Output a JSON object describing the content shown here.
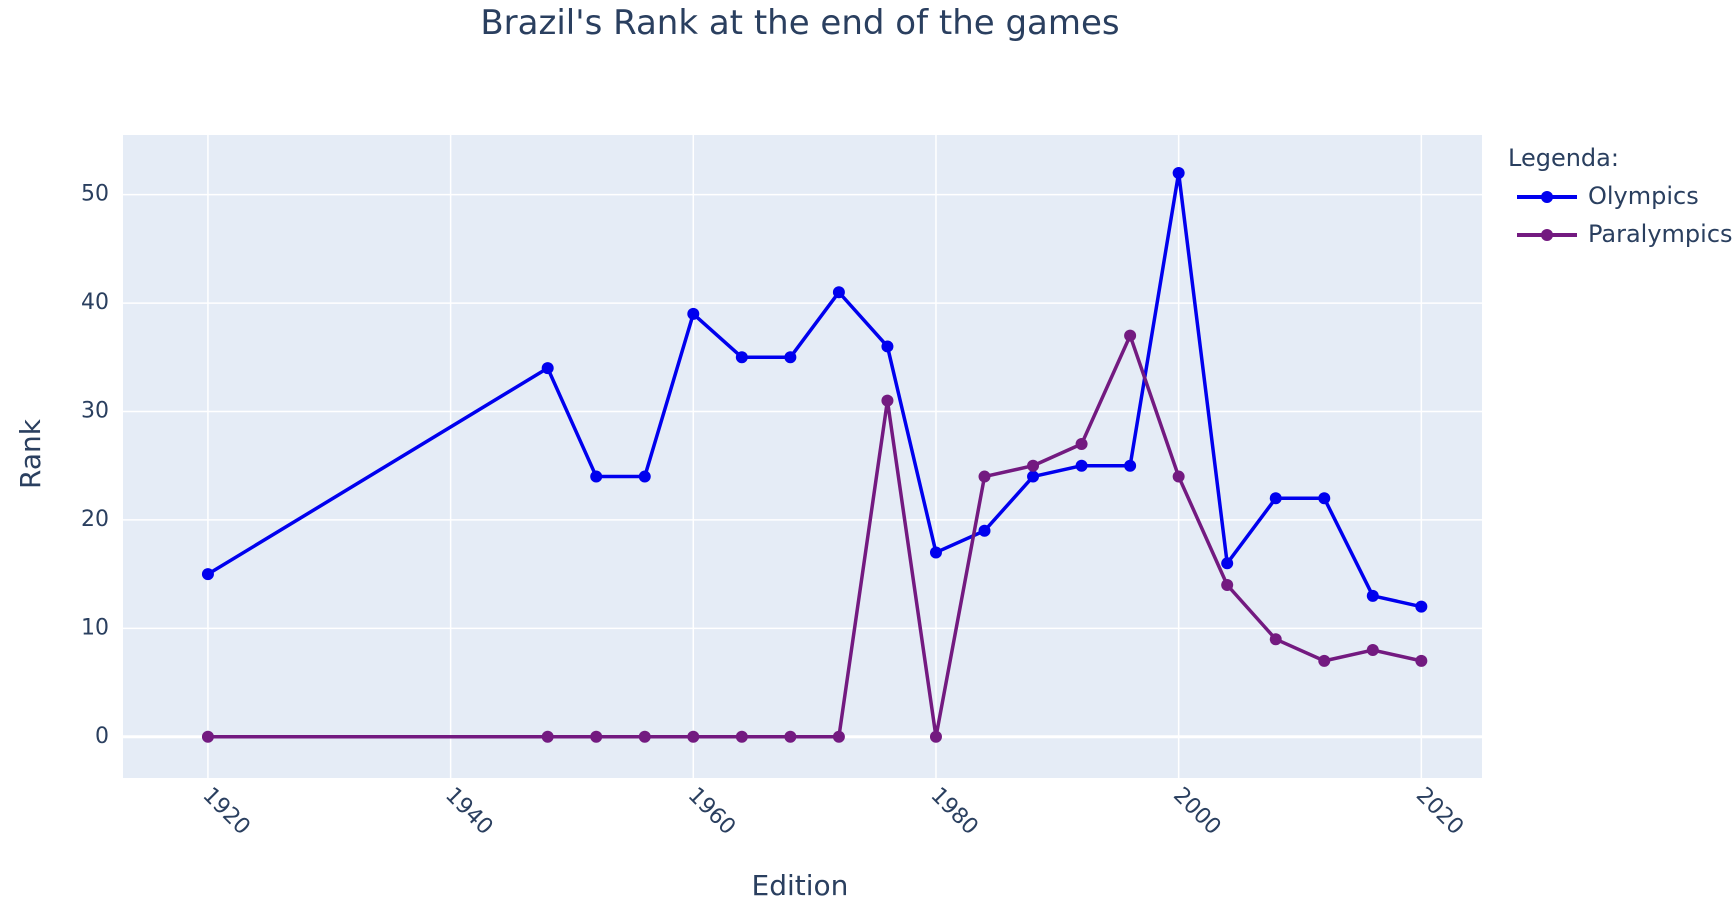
{
  "chart_data": {
    "type": "line",
    "title": "Brazil's Rank at the end of the games",
    "xlabel": "Edition",
    "ylabel": "Rank",
    "xlim": [
      1913,
      2025
    ],
    "ylim": [
      -3.8,
      55.5
    ],
    "x_ticks": [
      "1920",
      "1940",
      "1960",
      "1980",
      "2000",
      "2020"
    ],
    "y_ticks": [
      "0",
      "10",
      "20",
      "30",
      "40",
      "50"
    ],
    "grid": true,
    "legend": {
      "title": "Legenda:",
      "placement": "top-right, outside plot"
    },
    "plot_background": "#e5ecf6",
    "series": [
      {
        "name": "Olympics",
        "color": "#0000ee",
        "x": [
          1920,
          1948,
          1952,
          1956,
          1960,
          1964,
          1968,
          1972,
          1976,
          1980,
          1984,
          1988,
          1992,
          1996,
          2000,
          2004,
          2008,
          2012,
          2016,
          2020
        ],
        "y": [
          15,
          34,
          24,
          24,
          39,
          35,
          35,
          41,
          36,
          17,
          19,
          24,
          25,
          25,
          52,
          16,
          22,
          22,
          13,
          12
        ]
      },
      {
        "name": "Paralympics",
        "color": "#731a80",
        "x": [
          1920,
          1948,
          1952,
          1956,
          1960,
          1964,
          1968,
          1972,
          1976,
          1980,
          1984,
          1988,
          1992,
          1996,
          2000,
          2004,
          2008,
          2012,
          2016,
          2020
        ],
        "y": [
          0,
          0,
          0,
          0,
          0,
          0,
          0,
          0,
          31,
          0,
          24,
          25,
          27,
          37,
          24,
          14,
          9,
          7,
          8,
          7
        ]
      }
    ]
  }
}
